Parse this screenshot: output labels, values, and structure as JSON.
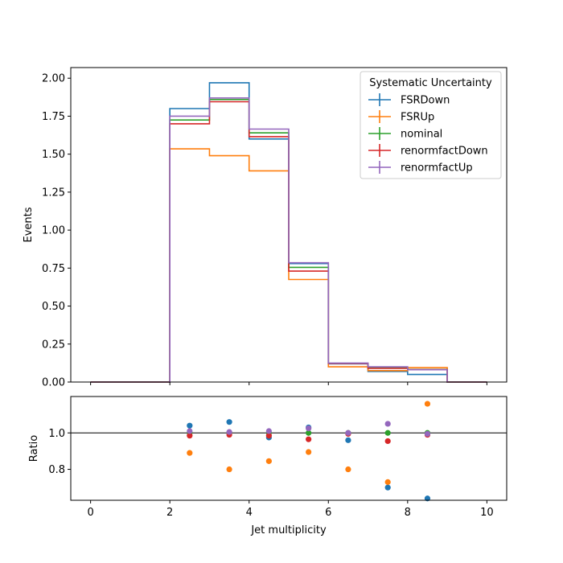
{
  "chart_data": [
    {
      "type": "line",
      "title": "",
      "xlabel": "",
      "ylabel": "Events",
      "xlim": [
        -0.5,
        10.5
      ],
      "ylim": [
        0.0,
        2.07
      ],
      "x_ticks": [
        0,
        2,
        4,
        6,
        8,
        10
      ],
      "y_ticks": [
        "0.00",
        "0.25",
        "0.50",
        "0.75",
        "1.00",
        "1.25",
        "1.50",
        "1.75",
        "2.00"
      ],
      "bin_edges": [
        0,
        1,
        2,
        3,
        4,
        5,
        6,
        7,
        8,
        9,
        10
      ],
      "legend": {
        "title": "Systematic Uncertainty",
        "placement": "top-right"
      },
      "series": [
        {
          "name": "FSRDown",
          "color": "#1f77b4",
          "values": [
            0,
            0,
            1.8,
            1.97,
            1.6,
            0.78,
            0.12,
            0.07,
            0.05,
            0
          ]
        },
        {
          "name": "FSRUp",
          "color": "#ff7f0e",
          "values": [
            0,
            0,
            1.535,
            1.49,
            1.39,
            0.675,
            0.1,
            0.075,
            0.095,
            0
          ]
        },
        {
          "name": "nominal",
          "color": "#2ca02c",
          "values": [
            0,
            0,
            1.725,
            1.86,
            1.64,
            0.755,
            0.123,
            0.095,
            0.083,
            0
          ]
        },
        {
          "name": "renormfactDown",
          "color": "#d62728",
          "values": [
            0,
            0,
            1.7,
            1.845,
            1.615,
            0.73,
            0.122,
            0.09,
            0.082,
            0
          ]
        },
        {
          "name": "renormfactUp",
          "color": "#9467bd",
          "values": [
            0,
            0,
            1.75,
            1.87,
            1.665,
            0.785,
            0.125,
            0.1,
            0.081,
            0
          ]
        }
      ]
    },
    {
      "type": "scatter",
      "title": "",
      "xlabel": "Jet multiplicity",
      "ylabel": "Ratio",
      "xlim": [
        -0.5,
        10.5
      ],
      "ylim": [
        0.63,
        1.2
      ],
      "x_ticks": [
        "0",
        "2",
        "4",
        "6",
        "8",
        "10"
      ],
      "y_ticks": [
        "0.8",
        "1.0"
      ],
      "reference_line": 1.0,
      "x": [
        2.5,
        3.5,
        4.5,
        5.5,
        6.5,
        7.5,
        8.5
      ],
      "series": [
        {
          "name": "FSRDown",
          "color": "#1f77b4",
          "values": [
            1.04,
            1.06,
            0.975,
            1.03,
            0.96,
            0.7,
            0.64
          ]
        },
        {
          "name": "FSRUp",
          "color": "#ff7f0e",
          "values": [
            0.89,
            0.8,
            0.845,
            0.895,
            0.8,
            0.73,
            1.16
          ]
        },
        {
          "name": "nominal",
          "color": "#2ca02c",
          "values": [
            1.0,
            1.0,
            1.0,
            1.0,
            1.0,
            1.0,
            1.0
          ]
        },
        {
          "name": "renormfactDown",
          "color": "#d62728",
          "values": [
            0.985,
            0.99,
            0.985,
            0.965,
            0.995,
            0.955,
            0.99
          ]
        },
        {
          "name": "renormfactUp",
          "color": "#9467bd",
          "values": [
            1.01,
            1.005,
            1.01,
            1.025,
            1.0,
            1.05,
            0.995
          ]
        }
      ]
    }
  ]
}
